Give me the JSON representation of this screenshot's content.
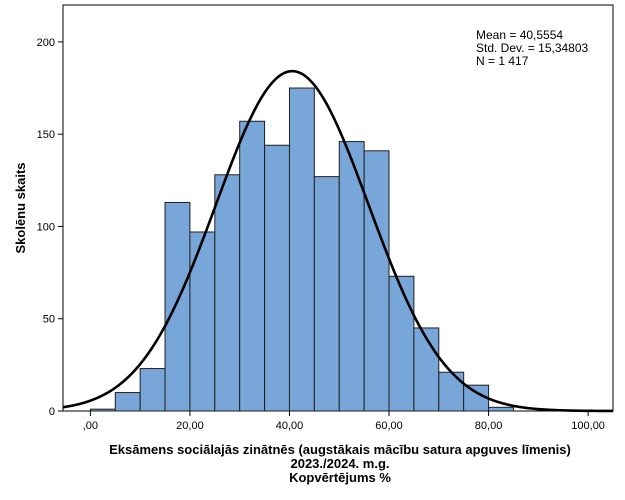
{
  "chart_data": {
    "type": "bar",
    "subtype": "histogram",
    "bin_width": 5,
    "bins": [
      {
        "start": 0,
        "count": 1
      },
      {
        "start": 5,
        "count": 10
      },
      {
        "start": 10,
        "count": 23
      },
      {
        "start": 15,
        "count": 113
      },
      {
        "start": 20,
        "count": 97
      },
      {
        "start": 25,
        "count": 128
      },
      {
        "start": 30,
        "count": 157
      },
      {
        "start": 35,
        "count": 144
      },
      {
        "start": 40,
        "count": 175
      },
      {
        "start": 45,
        "count": 127
      },
      {
        "start": 50,
        "count": 146
      },
      {
        "start": 55,
        "count": 141
      },
      {
        "start": 60,
        "count": 73
      },
      {
        "start": 65,
        "count": 45
      },
      {
        "start": 70,
        "count": 21
      },
      {
        "start": 75,
        "count": 14
      },
      {
        "start": 80,
        "count": 2
      }
    ],
    "normal_curve": {
      "mean": 40.5554,
      "sd": 15.34803,
      "n": 1417
    },
    "xlim": [
      -5.5,
      105
    ],
    "ylim": [
      0,
      220
    ],
    "xticks": [
      0,
      20,
      40,
      60,
      80,
      100
    ],
    "xtick_labels": [
      ",00",
      "20,00",
      "40,00",
      "60,00",
      "80,00",
      "100,00"
    ],
    "yticks": [
      0,
      50,
      100,
      150,
      200
    ],
    "ytick_labels": [
      "0",
      "50",
      "100",
      "150",
      "200"
    ],
    "ylabel": "Skolēnu skaits",
    "xlabel_lines": [
      "Eksāmens sociālajās zinātnēs (augstākais mācību satura apguves līmenis)",
      "2023./2024. m.g.",
      "Kopvērtējums %"
    ],
    "stats_lines": [
      "Mean = 40,5554",
      "Std. Dev. = 15,34803",
      "N = 1 417"
    ],
    "grid": false,
    "colors": {
      "bar_fill": "#79a6d8",
      "bar_stroke": "#1f1f1f",
      "curve": "#000000"
    }
  }
}
